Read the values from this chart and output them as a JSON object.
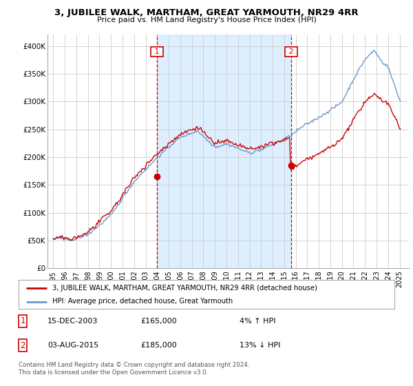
{
  "title": "3, JUBILEE WALK, MARTHAM, GREAT YARMOUTH, NR29 4RR",
  "subtitle": "Price paid vs. HM Land Registry's House Price Index (HPI)",
  "legend_line1": "3, JUBILEE WALK, MARTHAM, GREAT YARMOUTH, NR29 4RR (detached house)",
  "legend_line2": "HPI: Average price, detached house, Great Yarmouth",
  "annotation1_date": "15-DEC-2003",
  "annotation1_price": "£165,000",
  "annotation1_hpi": "4% ↑ HPI",
  "annotation2_date": "03-AUG-2015",
  "annotation2_price": "£185,000",
  "annotation2_hpi": "13% ↓ HPI",
  "footer": "Contains HM Land Registry data © Crown copyright and database right 2024.\nThis data is licensed under the Open Government Licence v3.0.",
  "sale_color": "#cc0000",
  "hpi_color": "#6699cc",
  "shade_color": "#ddeeff",
  "sale1_x": 2004.0,
  "sale2_x": 2015.6,
  "sale1_y": 165000,
  "sale2_y": 185000,
  "ylim": [
    0,
    420000
  ],
  "yticks": [
    0,
    50000,
    100000,
    150000,
    200000,
    250000,
    300000,
    350000,
    400000
  ],
  "ytick_labels": [
    "£0",
    "£50K",
    "£100K",
    "£150K",
    "£200K",
    "£250K",
    "£300K",
    "£350K",
    "£400K"
  ],
  "xlim_left": 1994.5,
  "xlim_right": 2025.8,
  "background_color": "#ffffff",
  "grid_color": "#cccccc",
  "title_fontsize": 9.5,
  "subtitle_fontsize": 8.0
}
